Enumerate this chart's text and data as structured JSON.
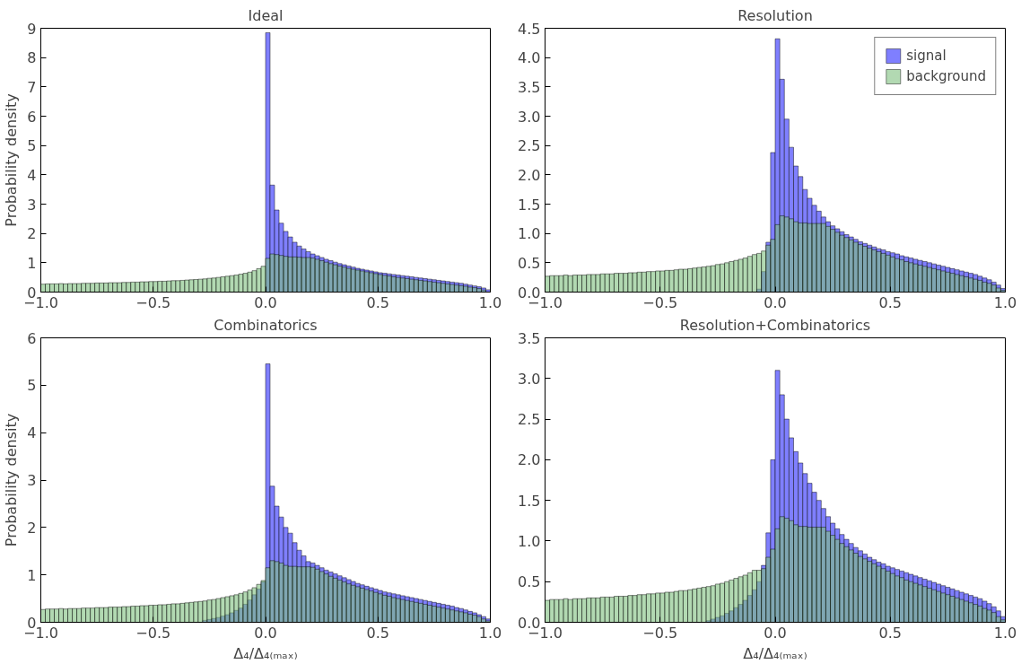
{
  "chart_data": [
    {
      "type": "histogram",
      "title": "Ideal",
      "ylabel": "Probability density",
      "grid": false,
      "legend": false,
      "bins": [
        -1.0,
        -0.98,
        -0.96,
        -0.94,
        -0.92,
        -0.9,
        -0.88,
        -0.86,
        -0.84,
        -0.82,
        -0.8,
        -0.78,
        -0.76,
        -0.74,
        -0.72,
        -0.7,
        -0.68,
        -0.66,
        -0.64,
        -0.62,
        -0.6,
        -0.58,
        -0.56,
        -0.54,
        -0.52,
        -0.5,
        -0.48,
        -0.46,
        -0.44,
        -0.42,
        -0.4,
        -0.38,
        -0.36,
        -0.34,
        -0.32,
        -0.3,
        -0.28,
        -0.26,
        -0.24,
        -0.22,
        -0.2,
        -0.18,
        -0.16,
        -0.14,
        -0.12,
        -0.1,
        -0.08,
        -0.06,
        -0.04,
        -0.02,
        0,
        0.02,
        0.04,
        0.06,
        0.08,
        0.1,
        0.12,
        0.14,
        0.16,
        0.18,
        0.2,
        0.22,
        0.24,
        0.26,
        0.28,
        0.3,
        0.32,
        0.34,
        0.36,
        0.38,
        0.4,
        0.42,
        0.44,
        0.46,
        0.48,
        0.5,
        0.52,
        0.54,
        0.56,
        0.58,
        0.6,
        0.62,
        0.64,
        0.66,
        0.68,
        0.7,
        0.72,
        0.74,
        0.76,
        0.78,
        0.8,
        0.82,
        0.84,
        0.86,
        0.88,
        0.9,
        0.92,
        0.94,
        0.96,
        0.98,
        1.0
      ],
      "series": [
        {
          "color": "#7f7fff",
          "values": [
            null,
            null,
            null,
            null,
            null,
            null,
            null,
            null,
            null,
            null,
            null,
            null,
            null,
            null,
            null,
            null,
            null,
            null,
            null,
            null,
            null,
            null,
            null,
            null,
            null,
            null,
            null,
            null,
            null,
            null,
            null,
            null,
            null,
            null,
            null,
            null,
            null,
            null,
            null,
            null,
            null,
            null,
            null,
            null,
            null,
            null,
            null,
            null,
            null,
            null,
            8.85,
            3.65,
            2.8,
            2.35,
            2.07,
            1.88,
            1.7,
            1.57,
            1.47,
            1.38,
            1.3,
            1.24,
            1.18,
            1.12,
            1.07,
            1.02,
            0.97,
            0.93,
            0.89,
            0.85,
            0.81,
            0.78,
            0.75,
            0.72,
            0.69,
            0.66,
            0.64,
            0.62,
            0.6,
            0.58,
            0.56,
            0.54,
            0.52,
            0.5,
            0.48,
            0.46,
            0.44,
            0.42,
            0.4,
            0.38,
            0.36,
            0.34,
            0.32,
            0.3,
            0.27,
            0.24,
            0.21,
            0.18,
            0.14,
            0.08
          ]
        },
        {
          "color": "#7fbf7f",
          "values": [
            0.27,
            0.28,
            0.28,
            0.28,
            0.29,
            0.28,
            0.29,
            0.29,
            0.29,
            0.3,
            0.3,
            0.3,
            0.31,
            0.31,
            0.31,
            0.32,
            0.32,
            0.32,
            0.33,
            0.33,
            0.34,
            0.34,
            0.35,
            0.35,
            0.36,
            0.36,
            0.37,
            0.37,
            0.38,
            0.39,
            0.39,
            0.4,
            0.41,
            0.42,
            0.43,
            0.44,
            0.45,
            0.47,
            0.48,
            0.5,
            0.52,
            0.54,
            0.56,
            0.58,
            0.61,
            0.64,
            0.68,
            0.73,
            0.8,
            0.88,
            1.15,
            1.3,
            1.28,
            1.25,
            1.22,
            1.2,
            1.2,
            1.19,
            1.18,
            1.18,
            1.16,
            1.12,
            1.07,
            1.02,
            0.97,
            0.93,
            0.89,
            0.85,
            0.81,
            0.78,
            0.75,
            0.72,
            0.69,
            0.66,
            0.63,
            0.6,
            0.57,
            0.55,
            0.52,
            0.5,
            0.48,
            0.46,
            0.44,
            0.42,
            0.4,
            0.38,
            0.36,
            0.34,
            0.32,
            0.3,
            0.28,
            0.26,
            0.24,
            0.22,
            0.2,
            0.17,
            0.15,
            0.12,
            0.07,
            null
          ]
        }
      ],
      "xlim": [
        -1,
        1
      ],
      "xticks": [
        {
          "value": -1,
          "label": "−1.0"
        },
        {
          "value": -0.5,
          "label": "−0.5"
        },
        {
          "value": 0,
          "label": "0.0"
        },
        {
          "value": 0.5,
          "label": "0.5"
        },
        {
          "value": 1,
          "label": "1.0"
        }
      ],
      "ylim": [
        0,
        9
      ],
      "yticks": [
        0,
        1,
        2,
        3,
        4,
        5,
        6,
        7,
        8,
        9
      ]
    },
    {
      "type": "histogram",
      "title": "Resolution",
      "grid": false,
      "legend": "top right",
      "bins": [
        -1.0,
        -0.98,
        -0.96,
        -0.94,
        -0.92,
        -0.9,
        -0.88,
        -0.86,
        -0.84,
        -0.82,
        -0.8,
        -0.78,
        -0.76,
        -0.74,
        -0.72,
        -0.7,
        -0.68,
        -0.66,
        -0.64,
        -0.62,
        -0.6,
        -0.58,
        -0.56,
        -0.54,
        -0.52,
        -0.5,
        -0.48,
        -0.46,
        -0.44,
        -0.42,
        -0.4,
        -0.38,
        -0.36,
        -0.34,
        -0.32,
        -0.3,
        -0.28,
        -0.26,
        -0.24,
        -0.22,
        -0.2,
        -0.18,
        -0.16,
        -0.14,
        -0.12,
        -0.1,
        -0.08,
        -0.06,
        -0.04,
        -0.02,
        0,
        0.02,
        0.04,
        0.06,
        0.08,
        0.1,
        0.12,
        0.14,
        0.16,
        0.18,
        0.2,
        0.22,
        0.24,
        0.26,
        0.28,
        0.3,
        0.32,
        0.34,
        0.36,
        0.38,
        0.4,
        0.42,
        0.44,
        0.46,
        0.48,
        0.5,
        0.52,
        0.54,
        0.56,
        0.58,
        0.6,
        0.62,
        0.64,
        0.66,
        0.68,
        0.7,
        0.72,
        0.74,
        0.76,
        0.78,
        0.8,
        0.82,
        0.84,
        0.86,
        0.88,
        0.9,
        0.92,
        0.94,
        0.96,
        0.98,
        1.0
      ],
      "series": [
        {
          "name": "signal",
          "color": "#7f7fff",
          "values": [
            null,
            null,
            null,
            null,
            null,
            null,
            null,
            null,
            null,
            null,
            null,
            null,
            null,
            null,
            null,
            null,
            null,
            null,
            null,
            null,
            null,
            null,
            null,
            null,
            null,
            null,
            null,
            null,
            null,
            null,
            null,
            null,
            null,
            null,
            null,
            null,
            null,
            null,
            null,
            null,
            null,
            null,
            null,
            null,
            null,
            null,
            0.05,
            0.35,
            0.85,
            2.38,
            4.32,
            3.63,
            2.95,
            2.47,
            2.15,
            1.97,
            1.75,
            1.6,
            1.48,
            1.38,
            1.28,
            1.2,
            1.13,
            1.08,
            1.03,
            0.98,
            0.94,
            0.9,
            0.86,
            0.83,
            0.8,
            0.77,
            0.74,
            0.72,
            0.69,
            0.67,
            0.65,
            0.62,
            0.6,
            0.58,
            0.56,
            0.54,
            0.52,
            0.5,
            0.48,
            0.46,
            0.44,
            0.42,
            0.4,
            0.38,
            0.36,
            0.34,
            0.32,
            0.3,
            0.27,
            0.24,
            0.21,
            0.17,
            0.12,
            0.06
          ]
        },
        {
          "name": "background",
          "color": "#7fbf7f",
          "values": [
            0.27,
            0.28,
            0.28,
            0.28,
            0.29,
            0.28,
            0.29,
            0.29,
            0.29,
            0.3,
            0.3,
            0.3,
            0.31,
            0.31,
            0.31,
            0.32,
            0.32,
            0.32,
            0.33,
            0.33,
            0.34,
            0.34,
            0.35,
            0.35,
            0.36,
            0.36,
            0.37,
            0.37,
            0.38,
            0.39,
            0.39,
            0.4,
            0.41,
            0.42,
            0.43,
            0.44,
            0.45,
            0.47,
            0.48,
            0.5,
            0.52,
            0.54,
            0.56,
            0.58,
            0.61,
            0.64,
            0.66,
            0.7,
            0.8,
            0.9,
            1.15,
            1.3,
            1.28,
            1.25,
            1.2,
            1.18,
            1.18,
            1.17,
            1.17,
            1.17,
            1.17,
            1.12,
            1.07,
            1.02,
            0.97,
            0.93,
            0.89,
            0.85,
            0.81,
            0.78,
            0.75,
            0.72,
            0.69,
            0.66,
            0.63,
            0.6,
            0.57,
            0.55,
            0.52,
            0.5,
            0.48,
            0.46,
            0.44,
            0.42,
            0.4,
            0.38,
            0.36,
            0.34,
            0.32,
            0.3,
            0.28,
            0.26,
            0.24,
            0.22,
            0.2,
            0.17,
            0.15,
            0.12,
            0.07,
            0.03
          ]
        }
      ],
      "xlim": [
        -1,
        1
      ],
      "xticks": [
        {
          "value": -1,
          "label": "−1.0"
        },
        {
          "value": -0.5,
          "label": "−0.5"
        },
        {
          "value": 0,
          "label": "0.0"
        },
        {
          "value": 0.5,
          "label": "0.5"
        },
        {
          "value": 1,
          "label": "1.0"
        }
      ],
      "ylim": [
        0,
        4.5
      ],
      "yticks": [
        {
          "value": 0,
          "label": "0.0"
        },
        0.5,
        {
          "value": 1,
          "label": "1.0"
        },
        1.5,
        {
          "value": 2,
          "label": "2.0"
        },
        2.5,
        {
          "value": 3,
          "label": "3.0"
        },
        3.5,
        {
          "value": 4,
          "label": "4.0"
        },
        4.5
      ]
    },
    {
      "type": "histogram",
      "title": "Combinatorics",
      "xlabel": "Δ₄/Δ₄₍ₘₐₓ₎",
      "ylabel": "Probability density",
      "grid": false,
      "legend": false,
      "bins": [
        -1.0,
        -0.98,
        -0.96,
        -0.94,
        -0.92,
        -0.9,
        -0.88,
        -0.86,
        -0.84,
        -0.82,
        -0.8,
        -0.78,
        -0.76,
        -0.74,
        -0.72,
        -0.7,
        -0.68,
        -0.66,
        -0.64,
        -0.62,
        -0.6,
        -0.58,
        -0.56,
        -0.54,
        -0.52,
        -0.5,
        -0.48,
        -0.46,
        -0.44,
        -0.42,
        -0.4,
        -0.38,
        -0.36,
        -0.34,
        -0.32,
        -0.3,
        -0.28,
        -0.26,
        -0.24,
        -0.22,
        -0.2,
        -0.18,
        -0.16,
        -0.14,
        -0.12,
        -0.1,
        -0.08,
        -0.06,
        -0.04,
        -0.02,
        0,
        0.02,
        0.04,
        0.06,
        0.08,
        0.1,
        0.12,
        0.14,
        0.16,
        0.18,
        0.2,
        0.22,
        0.24,
        0.26,
        0.28,
        0.3,
        0.32,
        0.34,
        0.36,
        0.38,
        0.4,
        0.42,
        0.44,
        0.46,
        0.48,
        0.5,
        0.52,
        0.54,
        0.56,
        0.58,
        0.6,
        0.62,
        0.64,
        0.66,
        0.68,
        0.7,
        0.72,
        0.74,
        0.76,
        0.78,
        0.8,
        0.82,
        0.84,
        0.86,
        0.88,
        0.9,
        0.92,
        0.94,
        0.96,
        0.98,
        1.0
      ],
      "series": [
        {
          "color": "#7f7fff",
          "values": [
            null,
            null,
            null,
            null,
            null,
            null,
            null,
            null,
            null,
            null,
            null,
            null,
            null,
            null,
            null,
            null,
            null,
            null,
            null,
            null,
            null,
            null,
            null,
            null,
            null,
            null,
            null,
            null,
            null,
            null,
            null,
            null,
            null,
            null,
            null,
            null,
            0.04,
            0.06,
            0.08,
            0.1,
            0.13,
            0.16,
            0.2,
            0.25,
            0.3,
            0.38,
            0.47,
            0.58,
            0.7,
            0.85,
            5.45,
            2.87,
            2.45,
            2.22,
            2.0,
            1.88,
            1.68,
            1.52,
            1.4,
            1.28,
            1.25,
            1.2,
            1.15,
            1.1,
            1.06,
            1.02,
            0.98,
            0.94,
            0.9,
            0.86,
            0.82,
            0.79,
            0.76,
            0.73,
            0.7,
            0.67,
            0.64,
            0.62,
            0.6,
            0.58,
            0.56,
            0.54,
            0.52,
            0.5,
            0.48,
            0.46,
            0.44,
            0.42,
            0.4,
            0.38,
            0.36,
            0.34,
            0.31,
            0.29,
            0.26,
            0.23,
            0.2,
            0.16,
            0.12,
            0.07
          ]
        },
        {
          "color": "#7fbf7f",
          "values": [
            0.27,
            0.28,
            0.28,
            0.28,
            0.29,
            0.28,
            0.29,
            0.29,
            0.29,
            0.3,
            0.3,
            0.3,
            0.31,
            0.31,
            0.31,
            0.32,
            0.32,
            0.32,
            0.33,
            0.33,
            0.34,
            0.34,
            0.35,
            0.35,
            0.36,
            0.36,
            0.37,
            0.37,
            0.38,
            0.39,
            0.39,
            0.4,
            0.41,
            0.42,
            0.43,
            0.44,
            0.45,
            0.47,
            0.48,
            0.5,
            0.52,
            0.54,
            0.56,
            0.58,
            0.61,
            0.64,
            0.68,
            0.73,
            0.8,
            0.88,
            1.15,
            1.3,
            1.28,
            1.25,
            1.2,
            1.18,
            1.18,
            1.17,
            1.17,
            1.17,
            1.16,
            1.12,
            1.07,
            1.02,
            0.97,
            0.93,
            0.89,
            0.85,
            0.81,
            0.78,
            0.75,
            0.72,
            0.69,
            0.66,
            0.63,
            0.6,
            0.57,
            0.55,
            0.52,
            0.5,
            0.48,
            0.46,
            0.44,
            0.42,
            0.4,
            0.38,
            0.36,
            0.34,
            0.32,
            0.3,
            0.28,
            0.26,
            0.24,
            0.22,
            0.2,
            0.17,
            0.15,
            0.12,
            0.07,
            0.03
          ]
        }
      ],
      "xlim": [
        -1,
        1
      ],
      "xticks": [
        {
          "value": -1,
          "label": "−1.0"
        },
        {
          "value": -0.5,
          "label": "−0.5"
        },
        {
          "value": 0,
          "label": "0.0"
        },
        {
          "value": 0.5,
          "label": "0.5"
        },
        {
          "value": 1,
          "label": "1.0"
        }
      ],
      "ylim": [
        0,
        6
      ],
      "yticks": [
        0,
        1,
        2,
        3,
        4,
        5,
        6
      ]
    },
    {
      "type": "histogram",
      "title": "Resolution+Combinatorics",
      "xlabel": "Δ₄/Δ₄₍ₘₐₓ₎",
      "grid": false,
      "legend": false,
      "bins": [
        -1.0,
        -0.98,
        -0.96,
        -0.94,
        -0.92,
        -0.9,
        -0.88,
        -0.86,
        -0.84,
        -0.82,
        -0.8,
        -0.78,
        -0.76,
        -0.74,
        -0.72,
        -0.7,
        -0.68,
        -0.66,
        -0.64,
        -0.62,
        -0.6,
        -0.58,
        -0.56,
        -0.54,
        -0.52,
        -0.5,
        -0.48,
        -0.46,
        -0.44,
        -0.42,
        -0.4,
        -0.38,
        -0.36,
        -0.34,
        -0.32,
        -0.3,
        -0.28,
        -0.26,
        -0.24,
        -0.22,
        -0.2,
        -0.18,
        -0.16,
        -0.14,
        -0.12,
        -0.1,
        -0.08,
        -0.06,
        -0.04,
        -0.02,
        0,
        0.02,
        0.04,
        0.06,
        0.08,
        0.1,
        0.12,
        0.14,
        0.16,
        0.18,
        0.2,
        0.22,
        0.24,
        0.26,
        0.28,
        0.3,
        0.32,
        0.34,
        0.36,
        0.38,
        0.4,
        0.42,
        0.44,
        0.46,
        0.48,
        0.5,
        0.52,
        0.54,
        0.56,
        0.58,
        0.6,
        0.62,
        0.64,
        0.66,
        0.68,
        0.7,
        0.72,
        0.74,
        0.76,
        0.78,
        0.8,
        0.82,
        0.84,
        0.86,
        0.88,
        0.9,
        0.92,
        0.94,
        0.96,
        0.98,
        1.0
      ],
      "series": [
        {
          "color": "#7f7fff",
          "values": [
            null,
            null,
            null,
            null,
            null,
            null,
            null,
            null,
            null,
            null,
            null,
            null,
            null,
            null,
            null,
            null,
            null,
            null,
            null,
            null,
            null,
            null,
            null,
            null,
            null,
            null,
            null,
            null,
            null,
            null,
            null,
            null,
            null,
            null,
            null,
            0.02,
            0.04,
            0.06,
            0.08,
            0.11,
            0.14,
            0.18,
            0.22,
            0.27,
            0.33,
            0.4,
            0.5,
            0.7,
            1.1,
            2.0,
            3.1,
            2.8,
            2.5,
            2.27,
            2.1,
            1.96,
            1.83,
            1.71,
            1.6,
            1.5,
            1.4,
            1.3,
            1.22,
            1.15,
            1.08,
            1.02,
            0.97,
            0.92,
            0.88,
            0.84,
            0.8,
            0.77,
            0.74,
            0.72,
            0.69,
            0.67,
            0.65,
            0.63,
            0.61,
            0.59,
            0.57,
            0.55,
            0.53,
            0.51,
            0.49,
            0.47,
            0.45,
            0.43,
            0.41,
            0.39,
            0.37,
            0.35,
            0.33,
            0.31,
            0.29,
            0.26,
            0.23,
            0.19,
            0.14,
            0.07
          ]
        },
        {
          "color": "#7fbf7f",
          "values": [
            0.27,
            0.28,
            0.28,
            0.28,
            0.29,
            0.28,
            0.29,
            0.29,
            0.29,
            0.3,
            0.3,
            0.3,
            0.31,
            0.31,
            0.31,
            0.32,
            0.32,
            0.32,
            0.33,
            0.33,
            0.34,
            0.34,
            0.35,
            0.35,
            0.36,
            0.36,
            0.37,
            0.37,
            0.38,
            0.39,
            0.39,
            0.4,
            0.41,
            0.42,
            0.43,
            0.44,
            0.45,
            0.47,
            0.48,
            0.5,
            0.52,
            0.54,
            0.56,
            0.58,
            0.61,
            0.64,
            0.64,
            0.66,
            0.8,
            0.9,
            1.15,
            1.3,
            1.28,
            1.25,
            1.2,
            1.18,
            1.18,
            1.17,
            1.17,
            1.17,
            1.17,
            1.12,
            1.07,
            1.02,
            0.97,
            0.93,
            0.89,
            0.85,
            0.81,
            0.78,
            0.75,
            0.72,
            0.69,
            0.66,
            0.63,
            0.6,
            0.57,
            0.55,
            0.52,
            0.5,
            0.48,
            0.46,
            0.44,
            0.42,
            0.4,
            0.38,
            0.36,
            0.34,
            0.32,
            0.3,
            0.28,
            0.26,
            0.24,
            0.22,
            0.2,
            0.17,
            0.15,
            0.12,
            0.07,
            0.03
          ]
        }
      ],
      "xlim": [
        -1,
        1
      ],
      "xticks": [
        {
          "value": -1,
          "label": "−1.0"
        },
        {
          "value": -0.5,
          "label": "−0.5"
        },
        {
          "value": 0,
          "label": "0.0"
        },
        {
          "value": 0.5,
          "label": "0.5"
        },
        {
          "value": 1,
          "label": "1.0"
        }
      ],
      "ylim": [
        0,
        3.5
      ],
      "yticks": [
        {
          "value": 0,
          "label": "0.0"
        },
        0.5,
        {
          "value": 1,
          "label": "1.0"
        },
        1.5,
        {
          "value": 2,
          "label": "2.0"
        },
        2.5,
        {
          "value": 3,
          "label": "3.0"
        },
        3.5
      ]
    }
  ]
}
